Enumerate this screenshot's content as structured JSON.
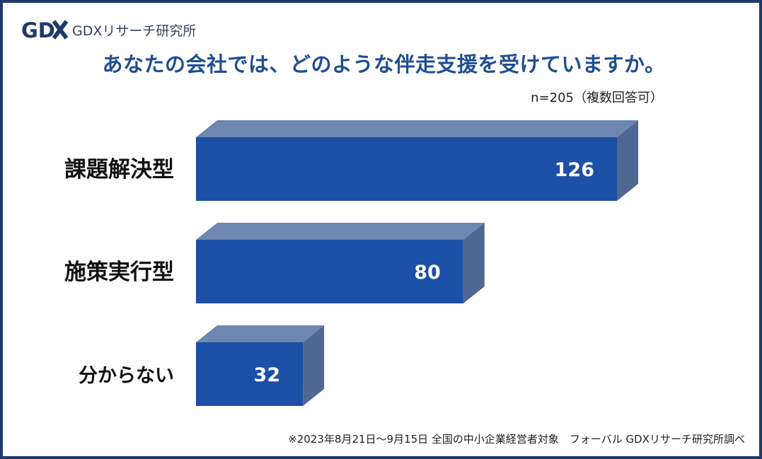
{
  "header": {
    "logo_text": "GDXリサーチ研究所",
    "title": "あなたの会社では、どのような伴走支援を受けていますか。",
    "sample_note": "n=205（複数回答可）"
  },
  "footer": {
    "note": "※2023年8月21日〜9月15日 全国の中小企業経営者対象　フォーバル GDXリサーチ研究所調べ"
  },
  "colors": {
    "frame": "#1f3a6b",
    "bar_front": "#1c4fa6",
    "bar_top": "#6d87b1",
    "bar_side": "#4f6793",
    "title": "#1f4e93"
  },
  "chart_data": {
    "type": "bar",
    "orientation": "horizontal",
    "style": "3d",
    "categories": [
      "課題解決型",
      "施策実行型",
      "分からない"
    ],
    "values": [
      126,
      80,
      32
    ],
    "xlim": [
      0,
      126
    ],
    "grid": false,
    "data_labels": true
  }
}
